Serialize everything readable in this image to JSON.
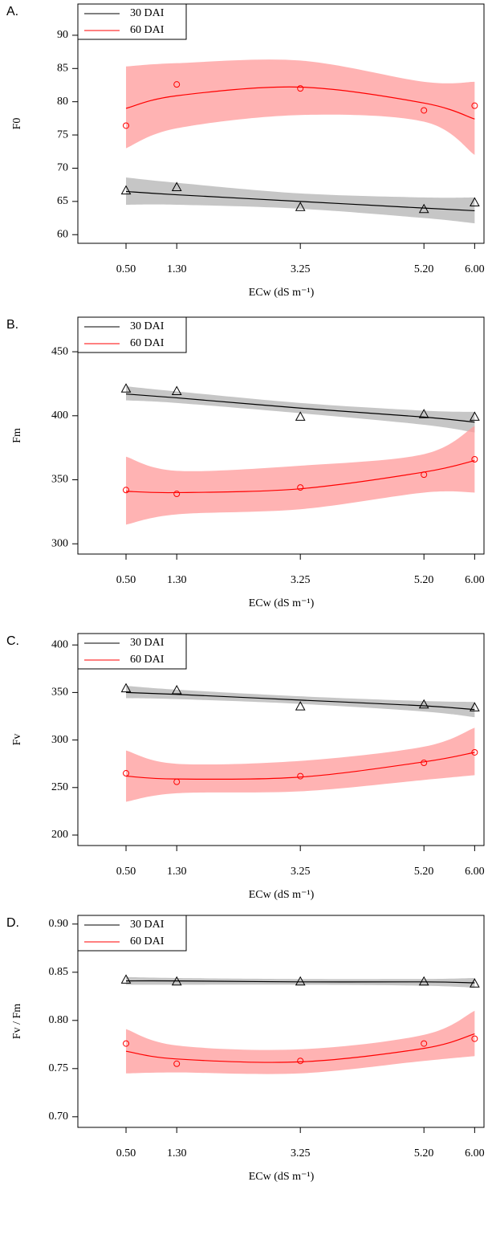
{
  "chart_data": [
    {
      "type": "scatter",
      "label": "A.",
      "ylabel": "F0",
      "xlabel": "ECw (dS m⁻¹)",
      "legend": "upper left",
      "x": [
        0.5,
        1.3,
        3.25,
        5.2,
        6.0
      ],
      "xlim": [
        -0.26,
        6.16
      ],
      "xticks": [
        {
          "value": 0.5,
          "label": "0.50"
        },
        {
          "value": 1.3,
          "label": "1.30"
        },
        3.25,
        {
          "value": 5.2,
          "label": "5.20"
        },
        {
          "value": 6.0,
          "label": "6.00"
        }
      ],
      "ylim": [
        58.7,
        94.7
      ],
      "yticks": [
        60,
        65,
        70,
        75,
        80,
        85,
        90
      ],
      "series": [
        {
          "name": "30 DAI",
          "color": "#000000",
          "band_color": "#b3b3b3",
          "marker": "triangle",
          "values": [
            66.6,
            67.1,
            64.1,
            63.8,
            64.8
          ],
          "fit": [
            66.5,
            66.0,
            65.0,
            64.0,
            63.6
          ],
          "lower": [
            64.5,
            64.5,
            63.9,
            62.5,
            61.7
          ],
          "upper": [
            68.6,
            67.8,
            66.2,
            65.6,
            65.6
          ]
        },
        {
          "name": "60 DAI",
          "color": "#ff0000",
          "band_color": "#ff9999",
          "marker": "circle",
          "values": [
            76.4,
            82.6,
            82.0,
            78.7,
            79.4
          ],
          "fit": [
            79.0,
            80.9,
            82.2,
            79.8,
            77.4
          ],
          "lower": [
            73.0,
            76.0,
            78.0,
            77.0,
            72.0
          ],
          "upper": [
            85.3,
            85.8,
            86.2,
            83.0,
            83.0
          ]
        }
      ]
    },
    {
      "type": "scatter",
      "label": "B.",
      "ylabel": "Fm",
      "xlabel": "ECw (dS m⁻¹)",
      "legend": "upper left",
      "x": [
        0.5,
        1.3,
        3.25,
        5.2,
        6.0
      ],
      "xlim": [
        -0.26,
        6.16
      ],
      "xticks": [
        {
          "value": 0.5,
          "label": "0.50"
        },
        {
          "value": 1.3,
          "label": "1.30"
        },
        3.25,
        {
          "value": 5.2,
          "label": "5.20"
        },
        {
          "value": 6.0,
          "label": "6.00"
        }
      ],
      "ylim": [
        292,
        477
      ],
      "yticks": [
        300,
        350,
        400,
        450
      ],
      "series": [
        {
          "name": "30 DAI",
          "color": "#000000",
          "band_color": "#b3b3b3",
          "marker": "triangle",
          "values": [
            421,
            419,
            399,
            401,
            399
          ],
          "fit": [
            417,
            414,
            406,
            399,
            395
          ],
          "lower": [
            412,
            410,
            402,
            393,
            387
          ],
          "upper": [
            423,
            419,
            410,
            404,
            403
          ]
        },
        {
          "name": "60 DAI",
          "color": "#ff0000",
          "band_color": "#ff9999",
          "marker": "circle",
          "values": [
            342,
            339,
            344,
            354,
            366
          ],
          "fit": [
            341,
            340,
            343,
            356,
            365
          ],
          "lower": [
            315,
            323,
            327,
            340,
            340
          ],
          "upper": [
            368,
            357,
            361,
            370,
            392
          ]
        }
      ]
    },
    {
      "type": "scatter",
      "label": "C.",
      "ylabel": "Fv",
      "xlabel": "ECw (dS m⁻¹)",
      "legend": "upper left",
      "x": [
        0.5,
        1.3,
        3.25,
        5.2,
        6.0
      ],
      "xlim": [
        -0.26,
        6.16
      ],
      "xticks": [
        {
          "value": 0.5,
          "label": "0.50"
        },
        {
          "value": 1.3,
          "label": "1.30"
        },
        3.25,
        {
          "value": 5.2,
          "label": "5.20"
        },
        {
          "value": 6.0,
          "label": "6.00"
        }
      ],
      "ylim": [
        189,
        412
      ],
      "yticks": [
        200,
        250,
        300,
        350,
        400
      ],
      "series": [
        {
          "name": "30 DAI",
          "color": "#000000",
          "band_color": "#b3b3b3",
          "marker": "triangle",
          "values": [
            354,
            352,
            335,
            337,
            334
          ],
          "fit": [
            350,
            348,
            342,
            336,
            332
          ],
          "lower": [
            344,
            343,
            338,
            330,
            324
          ],
          "upper": [
            357,
            353,
            346,
            341,
            340
          ]
        },
        {
          "name": "60 DAI",
          "color": "#ff0000",
          "band_color": "#ff9999",
          "marker": "circle",
          "values": [
            265,
            256,
            262,
            276,
            287
          ],
          "fit": [
            262,
            259,
            261,
            277,
            287
          ],
          "lower": [
            235,
            244,
            246,
            258,
            263
          ],
          "upper": [
            289,
            275,
            278,
            293,
            313
          ]
        }
      ]
    },
    {
      "type": "scatter",
      "label": "D.",
      "ylabel": "Fv / Fm",
      "xlabel": "ECw (dS m⁻¹)",
      "legend": "upper left",
      "x": [
        0.5,
        1.3,
        3.25,
        5.2,
        6.0
      ],
      "xlim": [
        -0.26,
        6.16
      ],
      "xticks": [
        {
          "value": 0.5,
          "label": "0.50"
        },
        {
          "value": 1.3,
          "label": "1.30"
        },
        3.25,
        {
          "value": 5.2,
          "label": "5.20"
        },
        {
          "value": 6.0,
          "label": "6.00"
        }
      ],
      "ylim": [
        0.689,
        0.909
      ],
      "yticks": [
        {
          "value": 0.7,
          "label": "0.70"
        },
        0.75,
        {
          "value": 0.8,
          "label": "0.80"
        },
        0.85,
        {
          "value": 0.9,
          "label": "0.90"
        }
      ],
      "series": [
        {
          "name": "30 DAI",
          "color": "#000000",
          "band_color": "#b3b3b3",
          "marker": "triangle",
          "values": [
            0.842,
            0.84,
            0.84,
            0.84,
            0.838
          ],
          "fit": [
            0.841,
            0.841,
            0.84,
            0.84,
            0.839
          ],
          "lower": [
            0.837,
            0.837,
            0.837,
            0.836,
            0.834
          ],
          "upper": [
            0.845,
            0.844,
            0.843,
            0.843,
            0.844
          ]
        },
        {
          "name": "60 DAI",
          "color": "#ff0000",
          "band_color": "#ff9999",
          "marker": "circle",
          "values": [
            0.776,
            0.755,
            0.758,
            0.776,
            0.781
          ],
          "fit": [
            0.768,
            0.76,
            0.757,
            0.771,
            0.786
          ],
          "lower": [
            0.745,
            0.746,
            0.745,
            0.758,
            0.763
          ],
          "upper": [
            0.791,
            0.774,
            0.77,
            0.785,
            0.81
          ]
        }
      ]
    }
  ]
}
